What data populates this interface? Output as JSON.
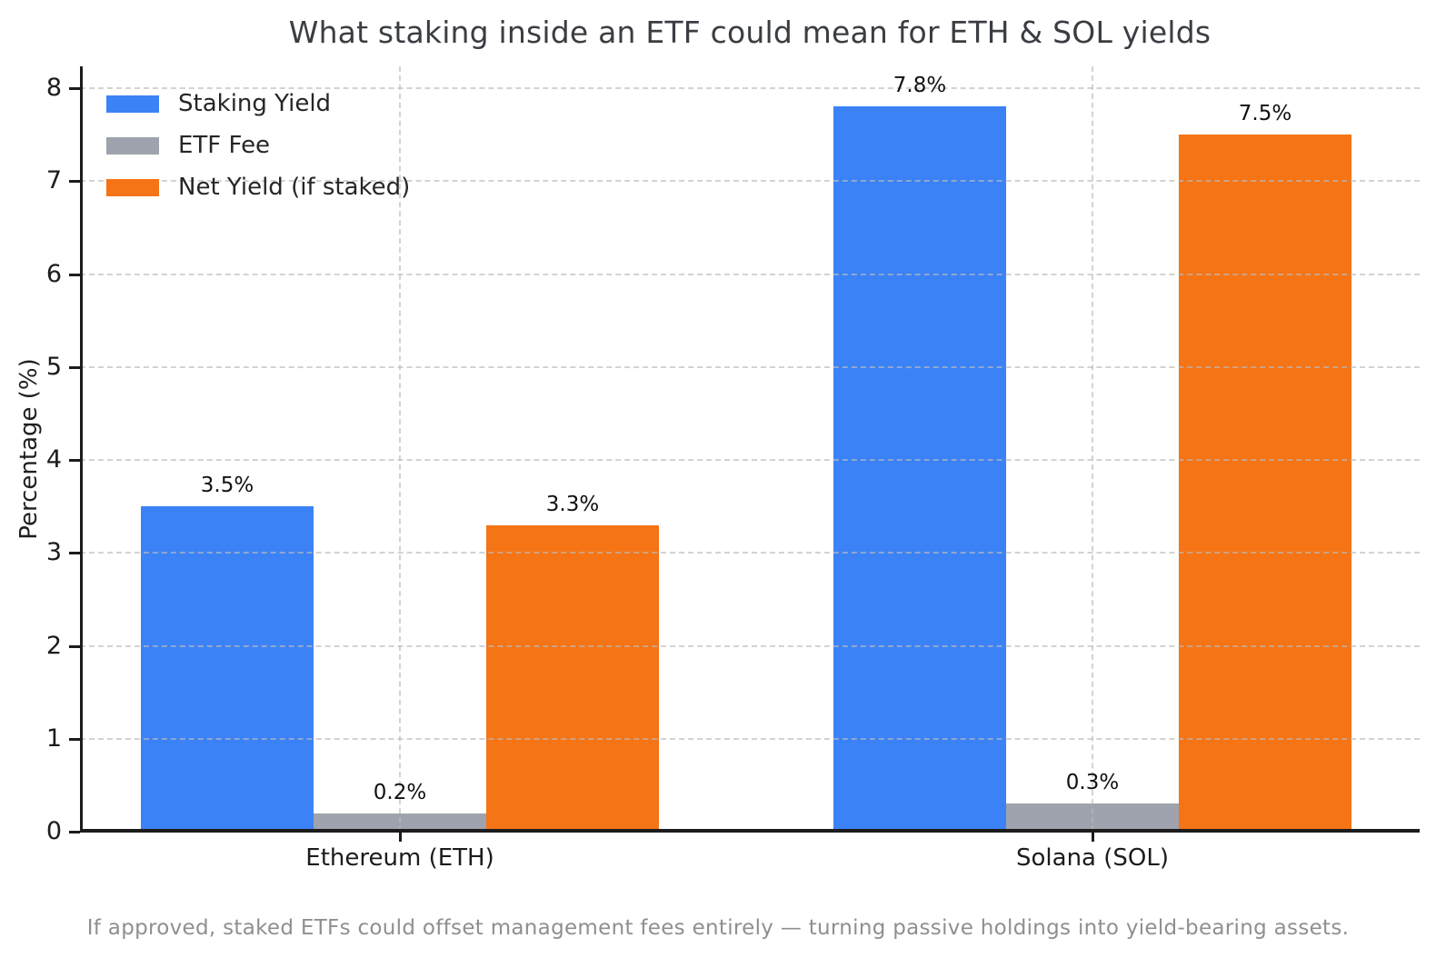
{
  "title": "What staking inside an ETF could mean for ETH & SOL yields",
  "caption": "If approved, staked ETFs could offset management fees entirely — turning passive holdings into yield-bearing assets.",
  "chart_data": {
    "type": "bar",
    "title": "What staking inside an ETF could mean for ETH & SOL yields",
    "xlabel": "",
    "ylabel": "Percentage (%)",
    "ylim": [
      0,
      8
    ],
    "yticks": [
      0,
      1,
      2,
      3,
      4,
      5,
      6,
      7,
      8
    ],
    "grid": true,
    "grid_style": "dashed",
    "legend_position": "upper-left",
    "categories": [
      "Ethereum (ETH)",
      "Solana (SOL)"
    ],
    "series": [
      {
        "name": "Staking Yield",
        "color": "#3B82F6",
        "values": [
          3.5,
          7.8
        ],
        "labels": [
          "3.5%",
          "7.8%"
        ]
      },
      {
        "name": "ETF Fee",
        "color": "#9EA3AD",
        "values": [
          0.2,
          0.3
        ],
        "labels": [
          "0.2%",
          "0.3%"
        ]
      },
      {
        "name": "Net Yield (if staked)",
        "color": "#F57416",
        "values": [
          3.3,
          7.5
        ],
        "labels": [
          "3.3%",
          "7.5%"
        ]
      }
    ],
    "caption": "If approved, staked ETFs could offset management fees entirely — turning passive holdings into yield-bearing assets."
  },
  "colors": {
    "staking_yield": "#3B82F6",
    "etf_fee": "#9EA3AD",
    "net_yield": "#F57416",
    "axis": "#1c1c1c",
    "grid": "#bbbbbb",
    "title_text": "#3a3d42",
    "caption_text": "#8f8f8f",
    "background": "#ffffff"
  }
}
